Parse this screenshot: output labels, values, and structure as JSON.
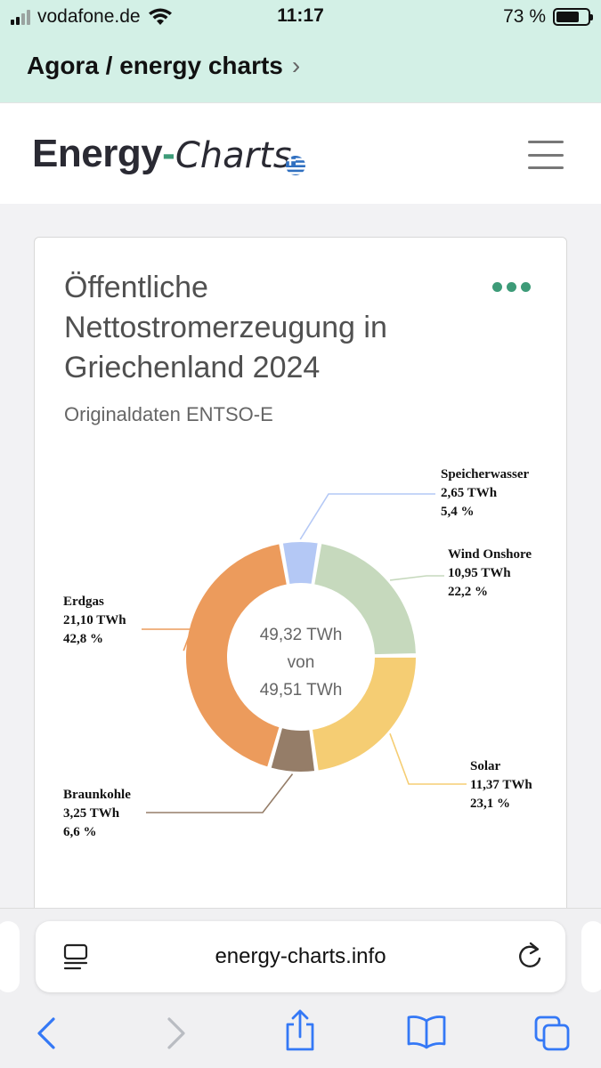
{
  "status": {
    "carrier": "vodafone.de",
    "time": "11:17",
    "battery": "73 %",
    "battery_level": 0.73
  },
  "back_link": {
    "label": "Agora / energy charts"
  },
  "site": {
    "logo_part1": "Energy",
    "logo_dash": "-",
    "logo_part2": "Charts"
  },
  "card": {
    "title": "Öffentliche Nettostromerzeugung in Griechenland 2024",
    "subtitle": "Originaldaten ENTSO-E"
  },
  "chart_data": {
    "type": "pie",
    "variant": "donut",
    "title": "Öffentliche Nettostromerzeugung in Griechenland 2024",
    "center_label": [
      "49,32 TWh",
      "von",
      "49,51 TWh"
    ],
    "slices": [
      {
        "name": "Speicherwasser",
        "value": 2.65,
        "value_label": "2,65 TWh",
        "percent_label": "5,4 %",
        "color": "#b4c8f5"
      },
      {
        "name": "Wind Onshore",
        "value": 10.95,
        "value_label": "10,95 TWh",
        "percent_label": "22,2 %",
        "color": "#c6d9bd"
      },
      {
        "name": "Solar",
        "value": 11.37,
        "value_label": "11,37 TWh",
        "percent_label": "23,1 %",
        "color": "#f5cd73"
      },
      {
        "name": "Braunkohle",
        "value": 3.25,
        "value_label": "3,25 TWh",
        "percent_label": "6,6 %",
        "color": "#957d68"
      },
      {
        "name": "Erdgas",
        "value": 21.1,
        "value_label": "21,10 TWh",
        "percent_label": "42,8 %",
        "color": "#ec9b5c"
      }
    ]
  },
  "browser": {
    "url": "energy-charts.info"
  },
  "colors": {
    "accent": "#3d9b78",
    "header_bg": "#d3f0e6",
    "ios_blue": "#3478f6"
  }
}
